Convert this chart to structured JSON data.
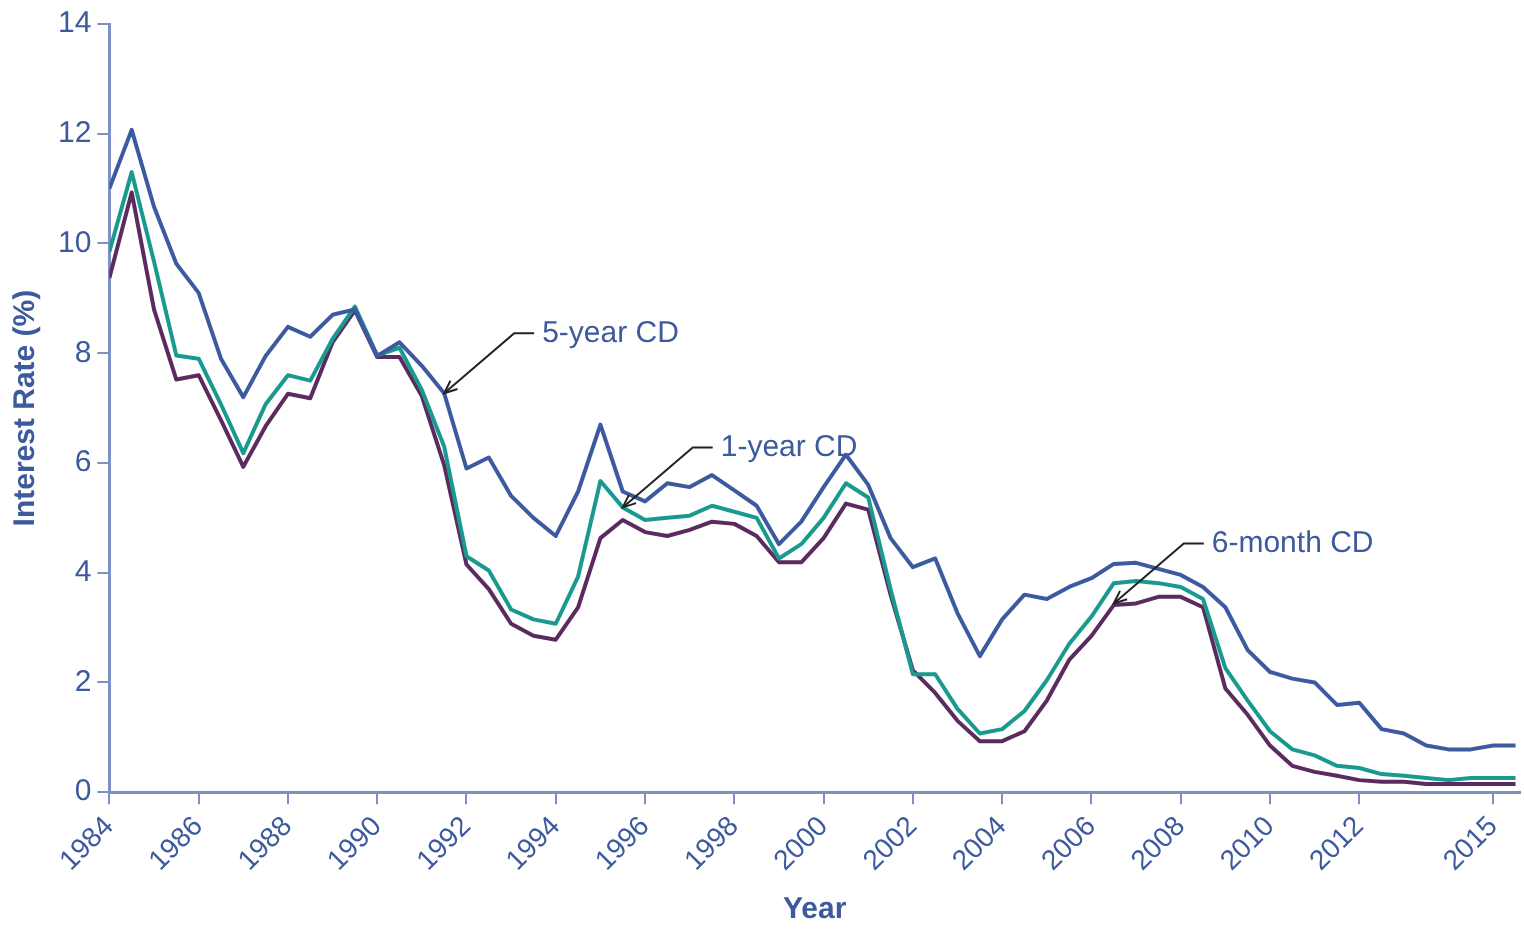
{
  "chart_data": {
    "type": "line",
    "xlabel": "Year",
    "ylabel": "Interest Rate (%)",
    "x": [
      1984,
      1984.5,
      1985,
      1985.5,
      1986,
      1986.5,
      1987,
      1987.5,
      1988,
      1988.5,
      1989,
      1989.5,
      1990,
      1990.5,
      1991,
      1991.5,
      1992,
      1992.5,
      1993,
      1993.5,
      1994,
      1994.5,
      1995,
      1995.5,
      1996,
      1996.5,
      1997,
      1997.5,
      1998,
      1998.5,
      1999,
      1999.5,
      2000,
      2000.5,
      2001,
      2001.5,
      2002,
      2002.5,
      2003,
      2003.5,
      2004,
      2004.5,
      2005,
      2005.5,
      2006,
      2006.5,
      2007,
      2007.5,
      2008,
      2008.5,
      2009,
      2009.5,
      2010,
      2010.5,
      2011,
      2011.5,
      2012,
      2012.5,
      2013,
      2013.5,
      2014,
      2014.5,
      2015,
      2015.5
    ],
    "series": [
      {
        "color": "#3c5aa0",
        "values": [
          11.0,
          12.07,
          10.67,
          9.63,
          9.1,
          7.9,
          7.2,
          7.95,
          8.48,
          8.3,
          8.7,
          8.8,
          7.95,
          8.2,
          7.77,
          7.27,
          5.9,
          6.1,
          5.4,
          5.0,
          4.67,
          5.48,
          6.7,
          5.48,
          5.3,
          5.63,
          5.56,
          5.78,
          5.5,
          5.22,
          4.52,
          4.93,
          5.56,
          6.15,
          5.6,
          4.63,
          4.1,
          4.26,
          3.26,
          2.48,
          3.15,
          3.6,
          3.52,
          3.74,
          3.9,
          4.16,
          4.18,
          4.07,
          3.96,
          3.74,
          3.37,
          2.59,
          2.19,
          2.07,
          2.0,
          1.59,
          1.63,
          1.15,
          1.07,
          0.85,
          0.78,
          0.78,
          0.85,
          0.85
        ]
      },
      {
        "color": "#1a9a8e",
        "values": [
          9.85,
          11.3,
          9.67,
          7.96,
          7.9,
          7.07,
          6.18,
          7.07,
          7.6,
          7.5,
          8.26,
          8.85,
          7.96,
          8.1,
          7.33,
          6.3,
          4.3,
          4.04,
          3.33,
          3.15,
          3.07,
          3.93,
          5.67,
          5.19,
          4.96,
          5.0,
          5.04,
          5.22,
          5.11,
          5.0,
          4.26,
          4.52,
          5.0,
          5.63,
          5.37,
          3.7,
          2.15,
          2.15,
          1.52,
          1.07,
          1.15,
          1.48,
          2.04,
          2.7,
          3.2,
          3.81,
          3.85,
          3.81,
          3.74,
          3.52,
          2.26,
          1.67,
          1.11,
          0.78,
          0.67,
          0.48,
          0.44,
          0.33,
          0.3,
          0.26,
          0.22,
          0.26,
          0.26,
          0.26
        ]
      },
      {
        "color": "#5b2a5e",
        "values": [
          9.37,
          10.93,
          8.8,
          7.52,
          7.6,
          6.78,
          5.93,
          6.67,
          7.26,
          7.18,
          8.2,
          8.78,
          7.93,
          7.93,
          7.22,
          5.96,
          4.15,
          3.7,
          3.07,
          2.85,
          2.78,
          3.37,
          4.63,
          4.96,
          4.74,
          4.67,
          4.78,
          4.93,
          4.89,
          4.67,
          4.19,
          4.19,
          4.63,
          5.26,
          5.15,
          3.6,
          2.22,
          1.81,
          1.3,
          0.93,
          0.93,
          1.11,
          1.67,
          2.41,
          2.85,
          3.41,
          3.44,
          3.56,
          3.56,
          3.37,
          1.89,
          1.41,
          0.85,
          0.48,
          0.37,
          0.3,
          0.22,
          0.19,
          0.19,
          0.15,
          0.15,
          0.15,
          0.15,
          0.15
        ]
      }
    ],
    "xlim": [
      1984,
      2015.6
    ],
    "xticks": [
      1984,
      1986,
      1988,
      1990,
      1992,
      1994,
      1996,
      1998,
      2000,
      2002,
      2004,
      2006,
      2008,
      2010,
      2012,
      2015
    ],
    "ylim": [
      0,
      14
    ],
    "yticks": [
      0,
      2,
      4,
      6,
      8,
      10,
      12,
      14
    ],
    "grid": false,
    "legend": false,
    "line_style": "solid",
    "marker": "none",
    "annotations": [
      {
        "text": "5-year CD",
        "x": 1991.5,
        "y": 7.27
      },
      {
        "text": "1-year CD",
        "x": 1995.5,
        "y": 5.19
      },
      {
        "text": "6-month CD",
        "x": 2006.5,
        "y": 3.44
      }
    ]
  }
}
